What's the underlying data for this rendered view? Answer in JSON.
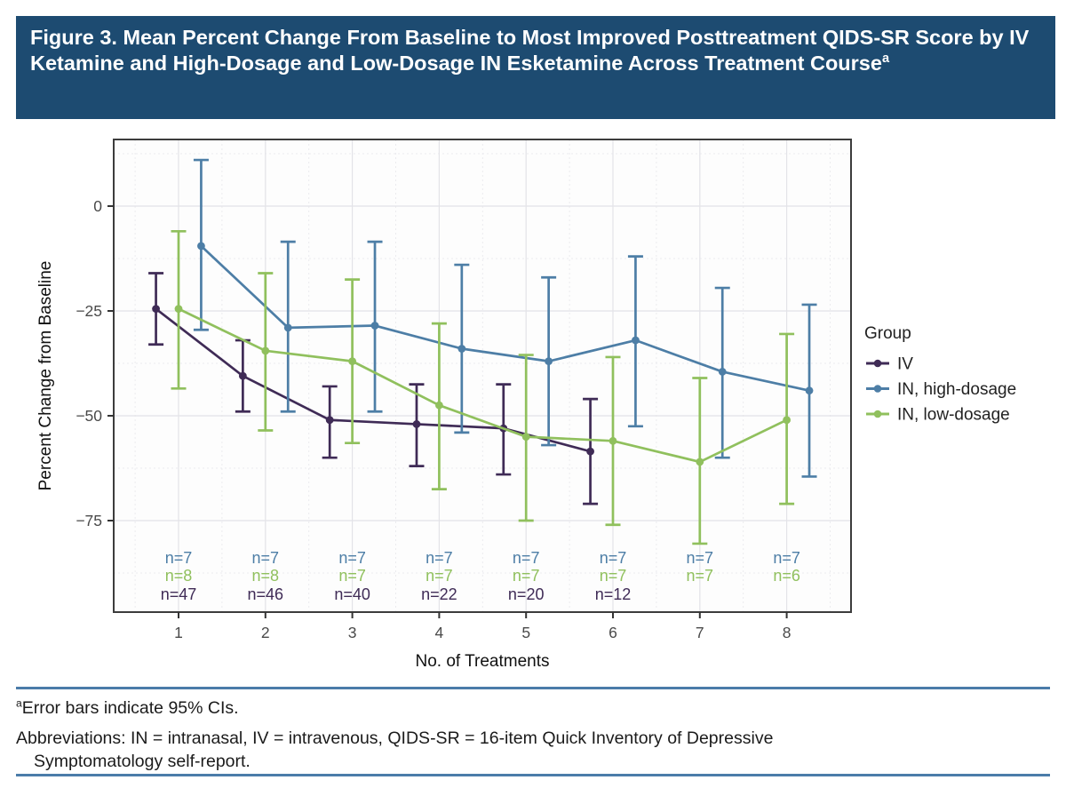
{
  "header": {
    "title": "Figure 3. Mean Percent Change From Baseline to Most Improved Posttreatment QIDS-SR Score by IV Ketamine and High-Dosage and Low-Dosage IN Esketamine Across Treatment Course",
    "title_sup": "a"
  },
  "colors": {
    "header_bg": "#1d4b71",
    "rule": "#4b7ca9",
    "iv": "#3f2b56",
    "in_high_dosage": "#4d7ea6",
    "in_low_dosage": "#90c05d",
    "axis_text": "#4a4a4a",
    "panel_border": "#3c3c3c"
  },
  "chart_data": {
    "type": "line",
    "title": "",
    "xlabel": "No. of Treatments",
    "ylabel": "Percent Change from Baseline",
    "x_ticks": [
      "1",
      "2",
      "3",
      "4",
      "5",
      "6",
      "7",
      "8"
    ],
    "y_ticks": [
      {
        "v": 0,
        "label": "0"
      },
      {
        "v": -25,
        "label": "−25"
      },
      {
        "v": -50,
        "label": "−50"
      },
      {
        "v": -75,
        "label": "−75"
      }
    ],
    "ylim": [
      -97,
      16
    ],
    "grid": {
      "major": true,
      "minor": true
    },
    "error_bars": "95% CI",
    "legend": {
      "title": "Group",
      "position": "right"
    },
    "series": [
      {
        "name": "IV",
        "color": "#3f2b56",
        "dodge": -0.26,
        "x": [
          1,
          2,
          3,
          4,
          5,
          6
        ],
        "means": [
          -24.5,
          -40.5,
          -51,
          -52,
          -53,
          -58.5
        ],
        "ci_high": [
          -16,
          -32,
          -43,
          -42.5,
          -42.5,
          -46
        ],
        "ci_low": [
          -33,
          -49,
          -60,
          -62,
          -64,
          -71
        ],
        "n": [
          47,
          46,
          40,
          22,
          20,
          12
        ]
      },
      {
        "name": "IN, high-dosage",
        "color": "#4d7ea6",
        "dodge": 0.26,
        "x": [
          1,
          2,
          3,
          4,
          5,
          6,
          7,
          8
        ],
        "means": [
          -9.5,
          -29,
          -28.5,
          -34,
          -37,
          -32,
          -39.5,
          -44
        ],
        "ci_high": [
          11,
          -8.5,
          -8.5,
          -14,
          -17,
          -12,
          -19.5,
          -23.5
        ],
        "ci_low": [
          -29.5,
          -49,
          -49,
          -54,
          -57,
          -52.5,
          -60,
          -64.5
        ],
        "n": [
          7,
          7,
          7,
          7,
          7,
          7,
          7,
          7
        ]
      },
      {
        "name": "IN, low-dosage",
        "color": "#90c05d",
        "dodge": 0,
        "x": [
          1,
          2,
          3,
          4,
          5,
          6,
          7,
          8
        ],
        "means": [
          -24.5,
          -34.5,
          -37,
          -47.5,
          -55,
          -56,
          -61,
          -51
        ],
        "ci_high": [
          -6,
          -16,
          -17.5,
          -28,
          -35.5,
          -36,
          -41,
          -30.5
        ],
        "ci_low": [
          -43.5,
          -53.5,
          -56.5,
          -67.5,
          -75,
          -76,
          -80.5,
          -71
        ],
        "n": [
          8,
          8,
          7,
          7,
          7,
          7,
          7,
          6
        ]
      }
    ],
    "n_annotation_rows": [
      {
        "series": "IN, high-dosage",
        "labels": [
          "n=7",
          "n=7",
          "n=7",
          "n=7",
          "n=7",
          "n=7",
          "n=7",
          "n=7"
        ]
      },
      {
        "series": "IN, low-dosage",
        "labels": [
          "n=8",
          "n=8",
          "n=7",
          "n=7",
          "n=7",
          "n=7",
          "n=7",
          "n=6"
        ]
      },
      {
        "series": "IV",
        "labels": [
          "n=47",
          "n=46",
          "n=40",
          "n=22",
          "n=20",
          "n=12"
        ]
      }
    ]
  },
  "footer": {
    "note_sup": "a",
    "note": "Error bars indicate 95% CIs.",
    "abbrev_line1": "Abbreviations: IN = intranasal, IV = intravenous, QIDS-SR = 16-item Quick Inventory of Depressive",
    "abbrev_line2": "Symptomatology self-report."
  }
}
